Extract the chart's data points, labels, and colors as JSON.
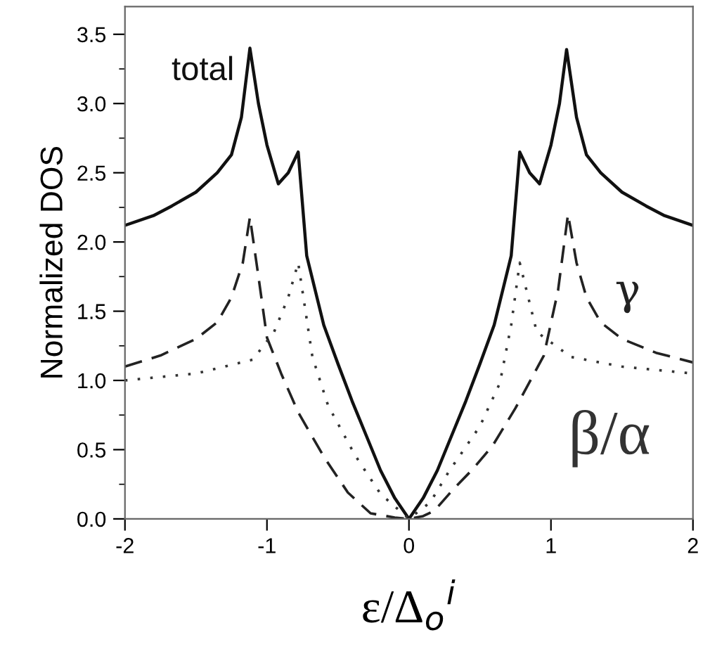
{
  "chart_data": {
    "type": "line",
    "xlabel": "ε/Δ$_{o}$$^{i}$",
    "ylabel": "Normalized DOS",
    "xlim": [
      -2,
      2
    ],
    "ylim": [
      0,
      3.7
    ],
    "xticks": [
      {
        "value": -2,
        "label": "-2"
      },
      {
        "value": -1,
        "label": "-1"
      },
      0,
      1,
      2
    ],
    "yticks": [
      {
        "value": 0,
        "label": "0.0"
      },
      0.5,
      {
        "value": 1,
        "label": "1.0"
      },
      1.5,
      {
        "value": 2,
        "label": "2.0"
      },
      2.5,
      {
        "value": 3,
        "label": "3.0"
      },
      3.5
    ],
    "grid": false,
    "legend": false,
    "marker": "none",
    "series": [
      {
        "name": "total",
        "color": "#111111",
        "line_style": "solid",
        "x": [
          -2,
          -1.8,
          -1.67,
          -1.5,
          -1.35,
          -1.25,
          -1.18,
          -1.12,
          -1.06,
          -1.0,
          -0.92,
          -0.85,
          -0.78,
          -0.72,
          -0.6,
          -0.5,
          -0.4,
          -0.3,
          -0.2,
          -0.1,
          0,
          0.1,
          0.2,
          0.3,
          0.4,
          0.5,
          0.6,
          0.72,
          0.78,
          0.85,
          0.92,
          1.0,
          1.06,
          1.11,
          1.18,
          1.25,
          1.35,
          1.5,
          1.67,
          1.8,
          2
        ],
        "values": [
          2.12,
          2.19,
          2.26,
          2.36,
          2.5,
          2.63,
          2.9,
          3.4,
          3.0,
          2.7,
          2.42,
          2.5,
          2.65,
          1.9,
          1.4,
          1.12,
          0.85,
          0.6,
          0.35,
          0.15,
          0,
          0.15,
          0.35,
          0.6,
          0.85,
          1.12,
          1.4,
          1.9,
          2.65,
          2.5,
          2.42,
          2.7,
          3.0,
          3.39,
          2.9,
          2.63,
          2.5,
          2.36,
          2.26,
          2.19,
          2.12
        ]
      },
      {
        "name": "γ",
        "color": "#222222",
        "line_style": "dashed",
        "x": [
          -2,
          -1.75,
          -1.5,
          -1.35,
          -1.25,
          -1.17,
          -1.12,
          -1.06,
          -1.0,
          -0.9,
          -0.78,
          -0.6,
          -0.43,
          -0.27,
          -0.1,
          0,
          0.1,
          0.18,
          0.3,
          0.45,
          0.59,
          0.75,
          0.95,
          1.05,
          1.12,
          1.18,
          1.25,
          1.35,
          1.5,
          1.74,
          2
        ],
        "values": [
          1.1,
          1.18,
          1.3,
          1.42,
          1.6,
          1.85,
          2.18,
          1.75,
          1.31,
          1.05,
          0.77,
          0.45,
          0.19,
          0.04,
          0.01,
          0,
          0.02,
          0.06,
          0.2,
          0.36,
          0.53,
          0.8,
          1.18,
          1.65,
          2.2,
          1.85,
          1.6,
          1.42,
          1.3,
          1.2,
          1.13
        ]
      },
      {
        "name": "β/α",
        "color": "#333333",
        "line_style": "dotted",
        "x": [
          -2,
          -1.5,
          -1.1,
          -0.95,
          -0.85,
          -0.78,
          -0.68,
          -0.57,
          -0.38,
          -0.2,
          0,
          0.15,
          0.28,
          0.5,
          0.64,
          0.72,
          0.78,
          0.9,
          1.14,
          1.5,
          2
        ],
        "values": [
          1.0,
          1.05,
          1.15,
          1.35,
          1.6,
          1.85,
          1.17,
          0.82,
          0.46,
          0.18,
          0,
          0.12,
          0.34,
          0.67,
          0.98,
          1.4,
          1.85,
          1.35,
          1.17,
          1.1,
          1.05
        ]
      }
    ]
  }
}
